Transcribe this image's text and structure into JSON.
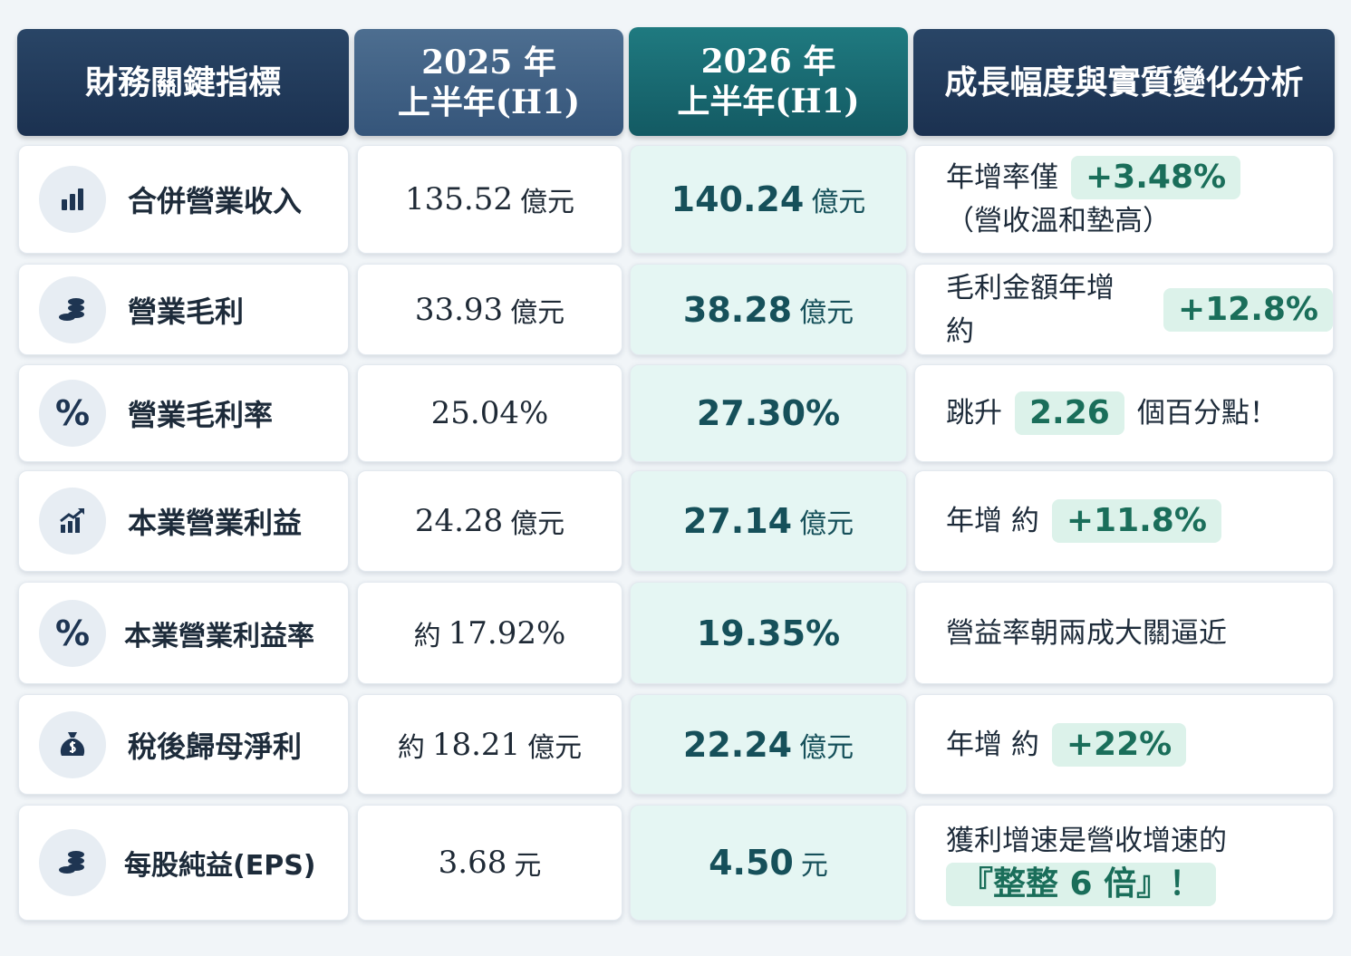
{
  "header": {
    "metric": "財務關鍵指標",
    "h1_2025": [
      "2025 年",
      "上半年(H1)"
    ],
    "h1_2026": [
      "2026 年",
      "上半年(H1)"
    ],
    "analysis": "成長幅度與實質變化分析"
  },
  "rows": [
    {
      "label": "合併營業收入",
      "h1_2025": {
        "number": "135.52",
        "unit": "億元"
      },
      "h1_2026": {
        "number": "140.24",
        "unit": "億元"
      },
      "analysis": [
        [
          {
            "text": "年增率僅"
          },
          {
            "text": "+3.48%",
            "highlight": true
          }
        ],
        [
          {
            "text": "（營收溫和墊高）"
          }
        ]
      ]
    },
    {
      "label": "營業毛利",
      "h1_2025": {
        "number": "33.93",
        "unit": "億元"
      },
      "h1_2026": {
        "number": "38.28",
        "unit": "億元"
      },
      "analysis": [
        [
          {
            "text": "毛利金額年增 約"
          },
          {
            "text": "+12.8%",
            "highlight": true
          }
        ]
      ]
    },
    {
      "label": "營業毛利率",
      "icon_text": "%",
      "h1_2025": {
        "number": "25.04%"
      },
      "h1_2026": {
        "number": "27.30%"
      },
      "analysis": [
        [
          {
            "text": "跳升"
          },
          {
            "text": "2.26",
            "highlight": true
          },
          {
            "text": "個百分點！"
          }
        ]
      ]
    },
    {
      "label": "本業營業利益",
      "h1_2025": {
        "number": "24.28",
        "unit": "億元"
      },
      "h1_2026": {
        "number": "27.14",
        "unit": "億元"
      },
      "analysis": [
        [
          {
            "text": "年增 約"
          },
          {
            "text": "+11.8%",
            "highlight": true
          }
        ]
      ]
    },
    {
      "label": "本業營業利益率",
      "icon_text": "%",
      "h1_2025": {
        "prefix": "約",
        "number": "17.92%"
      },
      "h1_2026": {
        "number": "19.35%"
      },
      "analysis": [
        [
          {
            "text": "營益率朝兩成大關逼近"
          }
        ]
      ]
    },
    {
      "label": "稅後歸母淨利",
      "h1_2025": {
        "prefix": "約",
        "number": "18.21",
        "unit": "億元"
      },
      "h1_2026": {
        "number": "22.24",
        "unit": "億元"
      },
      "analysis": [
        [
          {
            "text": "年增 約"
          },
          {
            "text": "+22%",
            "highlight": true
          }
        ]
      ]
    },
    {
      "label": "每股純益(EPS)",
      "h1_2025": {
        "number": "3.68",
        "unit": "元"
      },
      "h1_2026": {
        "number": "4.50",
        "unit": "元"
      },
      "analysis": [
        [
          {
            "text": "獲利增速是營收增速的"
          }
        ],
        [
          {
            "text": "『整整 6 倍』！",
            "highlight": true
          }
        ]
      ]
    }
  ]
}
